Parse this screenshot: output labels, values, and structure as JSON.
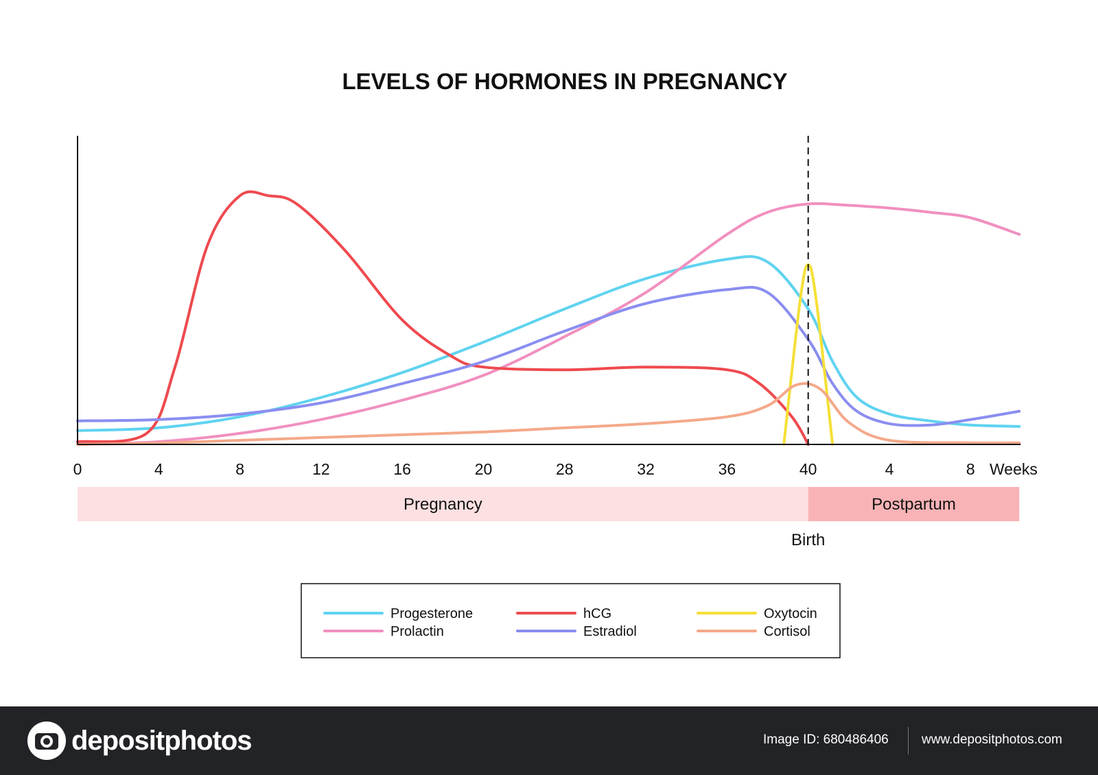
{
  "chart_data": {
    "type": "line",
    "title": "LEVELS OF HORMONES IN PREGNANCY",
    "xlabel": "Weeks",
    "ylabel": "",
    "x_tick_labels": [
      "0",
      "4",
      "8",
      "12",
      "16",
      "20",
      "28",
      "32",
      "36",
      "40",
      "4",
      "8"
    ],
    "x_index": [
      0,
      1,
      2,
      3,
      4,
      5,
      6,
      7,
      8,
      9,
      10,
      11
    ],
    "xlim": [
      0,
      11.6
    ],
    "ylim": [
      0,
      1
    ],
    "grid": false,
    "legend_position": "bottom",
    "birth_marker": {
      "x": 9,
      "label": "Birth"
    },
    "phases": [
      {
        "label": "Pregnancy",
        "start": 0,
        "end": 9,
        "color": "#fde0e1"
      },
      {
        "label": "Postpartum",
        "start": 9,
        "end": 11.6,
        "color": "#f9b3b6"
      }
    ],
    "series": [
      {
        "name": "Progesterone",
        "color": "#5fd3f0",
        "x": [
          0,
          1,
          2,
          3,
          4,
          5,
          6,
          7,
          8,
          8.5,
          9,
          9.3,
          9.6,
          10,
          10.5,
          11,
          11.6
        ],
        "y": [
          0.05,
          0.06,
          0.1,
          0.17,
          0.26,
          0.37,
          0.49,
          0.6,
          0.67,
          0.66,
          0.49,
          0.3,
          0.17,
          0.11,
          0.085,
          0.07,
          0.065
        ]
      },
      {
        "name": "Prolactin",
        "color": "#f190bf",
        "x": [
          0,
          1,
          2,
          3,
          4,
          5,
          6,
          7,
          8,
          8.5,
          9,
          9.5,
          10,
          10.5,
          11,
          11.6
        ],
        "y": [
          0,
          0.01,
          0.04,
          0.09,
          0.16,
          0.25,
          0.39,
          0.55,
          0.76,
          0.84,
          0.87,
          0.865,
          0.855,
          0.84,
          0.82,
          0.76
        ]
      },
      {
        "name": "hCG",
        "color": "#ee4a4f",
        "x": [
          0,
          0.85,
          1.2,
          1.6,
          2,
          2.35,
          2.7,
          3.3,
          4,
          4.6,
          5,
          6,
          7,
          8,
          8.4,
          8.8,
          9
        ],
        "y": [
          0.01,
          0.04,
          0.28,
          0.72,
          0.9,
          0.9,
          0.87,
          0.7,
          0.45,
          0.32,
          0.28,
          0.27,
          0.28,
          0.27,
          0.22,
          0.1,
          0
        ]
      },
      {
        "name": "Estradiol",
        "color": "#8a8ef0",
        "x": [
          0,
          1,
          2,
          3,
          4,
          5,
          6,
          7,
          8,
          8.5,
          9,
          9.3,
          9.6,
          10,
          10.5,
          11,
          11.6
        ],
        "y": [
          0.085,
          0.09,
          0.11,
          0.15,
          0.22,
          0.3,
          0.41,
          0.51,
          0.56,
          0.55,
          0.38,
          0.22,
          0.12,
          0.075,
          0.07,
          0.09,
          0.12
        ]
      },
      {
        "name": "Oxytocin",
        "color": "#f5e038",
        "x": [
          8.7,
          8.9,
          9.0,
          9.1,
          9.3
        ],
        "y": [
          0,
          0.52,
          0.65,
          0.52,
          0
        ]
      },
      {
        "name": "Cortisol",
        "color": "#f4a98a",
        "x": [
          0,
          1,
          2,
          3,
          4,
          5,
          6,
          7,
          8,
          8.5,
          8.85,
          9.15,
          9.5,
          10,
          11,
          11.6
        ],
        "y": [
          0,
          0.005,
          0.015,
          0.025,
          0.035,
          0.045,
          0.06,
          0.075,
          0.1,
          0.14,
          0.215,
          0.2,
          0.08,
          0.015,
          0.006,
          0.006
        ]
      }
    ],
    "legend": {
      "columns": [
        [
          "Progesterone",
          "Prolactin"
        ],
        [
          "hCG",
          "Estradiol"
        ],
        [
          "Oxytocin",
          "Cortisol"
        ]
      ]
    }
  },
  "footer": {
    "logo_text": "depositphotos",
    "image_id": "Image ID: 680486406",
    "site": "www.depositphotos.com"
  }
}
